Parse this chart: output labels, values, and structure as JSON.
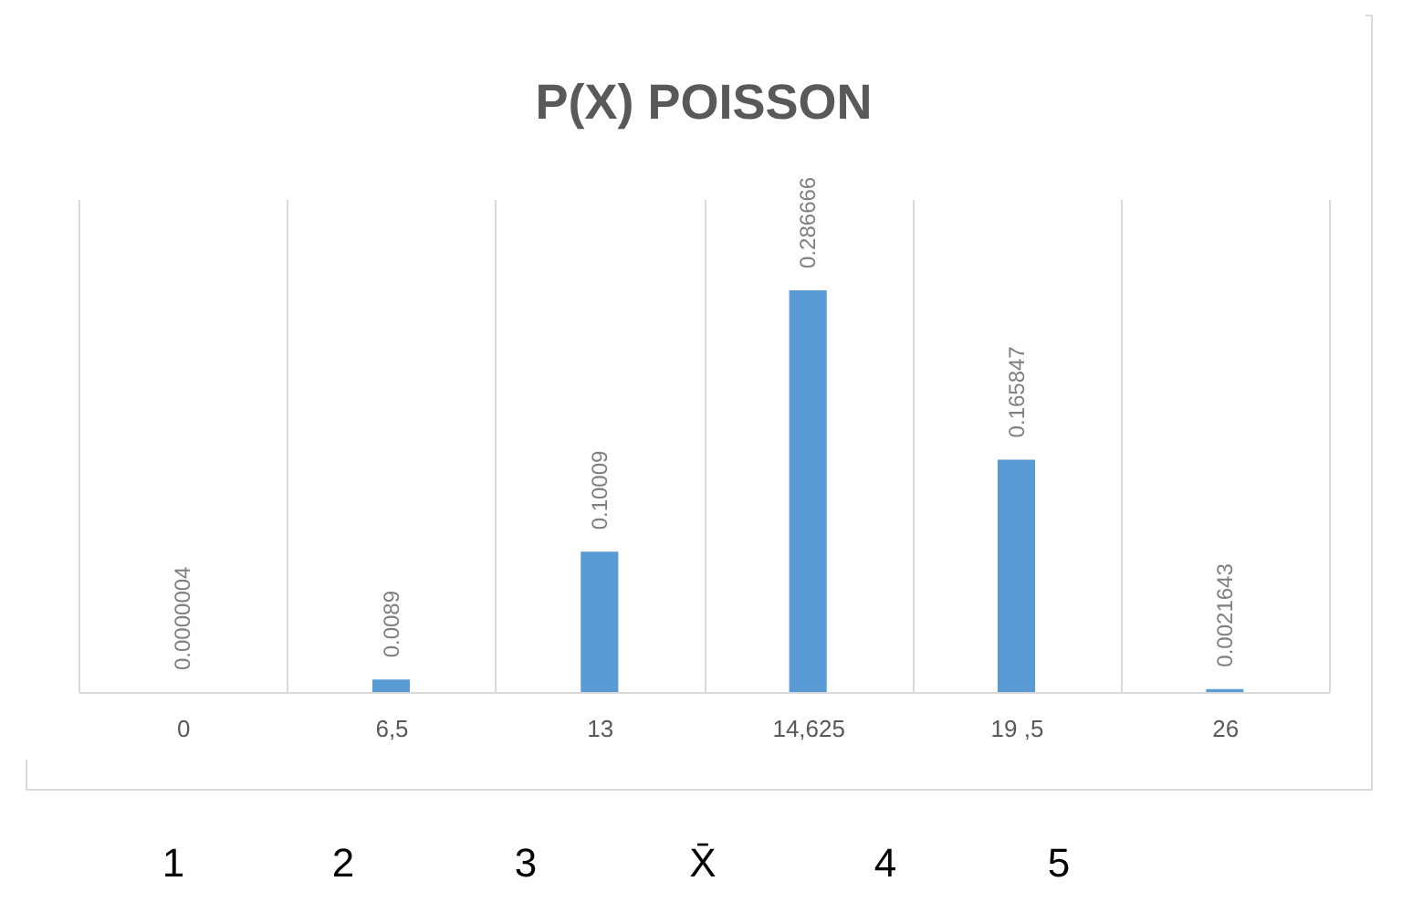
{
  "chart_data": {
    "type": "bar",
    "title": "P(X) POISSON",
    "categories": [
      "0",
      "6,5",
      "13",
      "14,625",
      "19 ,5",
      "26"
    ],
    "values": [
      4e-07,
      0.0089,
      0.10009,
      0.286666,
      0.165847,
      0.0021643
    ],
    "value_labels": [
      "0.0000004",
      "0.0089",
      "0.10009",
      "0.286666",
      "0.165847",
      "0.0021643"
    ],
    "color": "#5b9bd5",
    "grid": "x",
    "annotations": [
      "1",
      "2",
      "3",
      "X̄",
      "4",
      "5"
    ]
  }
}
